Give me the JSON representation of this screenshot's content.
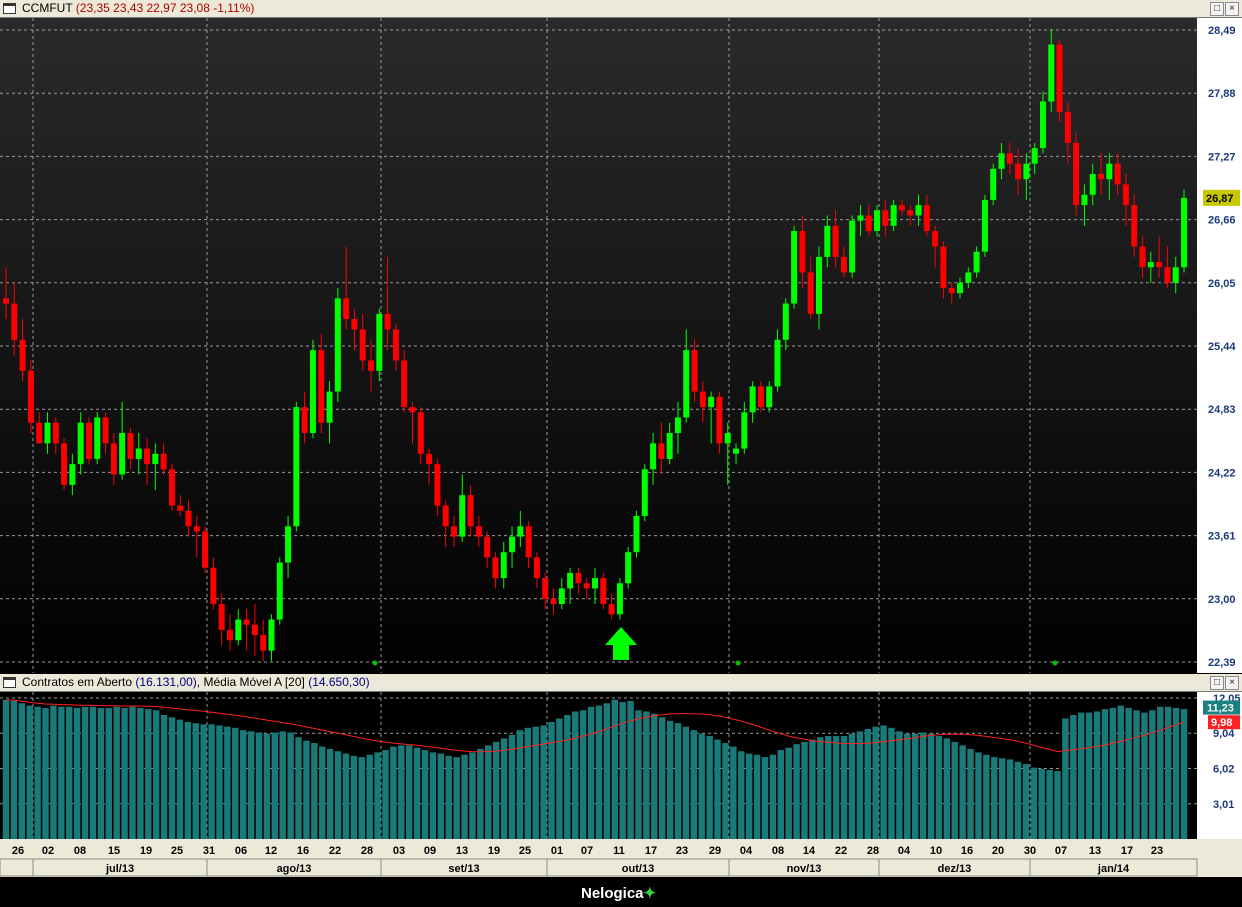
{
  "main_chart": {
    "title": "CCMFUT",
    "quote": "(23,35  23,43  22,97  23,08  -1,11%)",
    "price_label": "26,87",
    "y_ticks": [
      "28,49",
      "27,88",
      "27,27",
      "26,66",
      "26,05",
      "25,44",
      "24,83",
      "24,22",
      "23,61",
      "23,00",
      "22,39"
    ]
  },
  "indicator": {
    "title": "Contratos em Aberto",
    "value": "(16.131,00)",
    "ma_title": "Média Móvel A [20]",
    "ma_value": "(14.650,30)",
    "y_ticks": [
      "12,05",
      "9,04",
      "6,02",
      "3,01"
    ],
    "last_label": "11,23",
    "ma_label": "9,98"
  },
  "x_axis": {
    "days": [
      "26",
      "02",
      "08",
      "15",
      "19",
      "25",
      "31",
      "06",
      "12",
      "16",
      "22",
      "28",
      "03",
      "09",
      "13",
      "19",
      "25",
      "01",
      "07",
      "11",
      "17",
      "23",
      "29",
      "04",
      "08",
      "14",
      "22",
      "28",
      "04",
      "10",
      "16",
      "20",
      "30",
      "07",
      "13",
      "17",
      "23"
    ],
    "months": [
      "jul/13",
      "ago/13",
      "set/13",
      "out/13",
      "nov/13",
      "dez/13",
      "jan/14"
    ]
  },
  "colors": {
    "up": "#00ff00",
    "down": "#ff0000",
    "bars": "#1a7a7a",
    "ma": "#ff2020",
    "price_label_bg": "#c8c800",
    "last_label_bg": "#1a8080",
    "ma_label_bg": "#ff2020"
  },
  "footer": {
    "brand": "Nelogica"
  },
  "icons": {
    "window": "window-icon",
    "maximize": "maximize-icon",
    "close": "close-icon",
    "signal": "buy-arrow-icon"
  }
}
